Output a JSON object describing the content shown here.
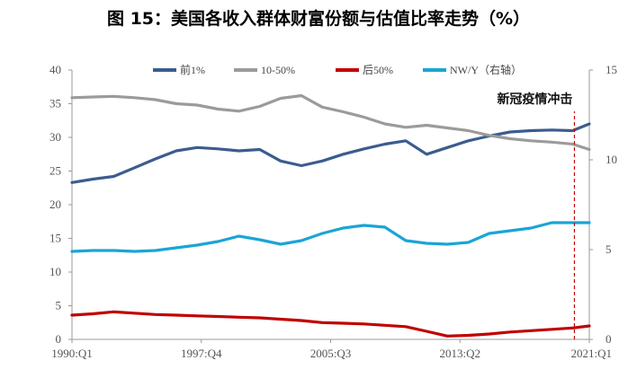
{
  "title": "图 15：美国各收入群体财富份额与估值比率走势（%）",
  "chart_data": {
    "type": "line",
    "y_left": {
      "min": 0,
      "max": 40,
      "ticks": [
        0,
        5,
        10,
        15,
        20,
        25,
        30,
        35,
        40
      ]
    },
    "y_right": {
      "min": 0,
      "max": 15,
      "ticks": [
        0,
        5,
        10,
        15
      ]
    },
    "x_ticks": [
      {
        "label": "1990:Q1",
        "q": 0
      },
      {
        "label": "1997:Q4",
        "q": 31
      },
      {
        "label": "2005:Q3",
        "q": 62
      },
      {
        "label": "2013:Q2",
        "q": 93
      },
      {
        "label": "2021:Q1",
        "q": 124
      }
    ],
    "x_points": [
      0,
      5,
      10,
      15,
      20,
      25,
      30,
      35,
      40,
      45,
      50,
      55,
      60,
      65,
      70,
      75,
      80,
      85,
      90,
      95,
      100,
      105,
      110,
      115,
      120,
      124
    ],
    "series": [
      {
        "name": "前1%",
        "color": "#3b5c8f",
        "axis": "left",
        "values": [
          23.3,
          23.8,
          24.2,
          25.5,
          26.8,
          28.0,
          28.5,
          28.3,
          28.0,
          28.2,
          26.5,
          25.8,
          26.5,
          27.5,
          28.3,
          29.0,
          29.5,
          27.5,
          28.5,
          29.5,
          30.2,
          30.8,
          31.0,
          31.1,
          31.0,
          32.0
        ]
      },
      {
        "name": "10-50%",
        "color": "#9b9b9b",
        "axis": "left",
        "values": [
          35.9,
          36.0,
          36.1,
          35.9,
          35.6,
          35.0,
          34.8,
          34.2,
          33.9,
          34.6,
          35.8,
          36.2,
          34.5,
          33.8,
          33.0,
          32.0,
          31.5,
          31.8,
          31.4,
          31.0,
          30.3,
          29.8,
          29.5,
          29.3,
          29.0,
          28.2
        ]
      },
      {
        "name": "后50%",
        "color": "#c00000",
        "axis": "left",
        "values": [
          3.6,
          3.8,
          4.1,
          3.9,
          3.7,
          3.6,
          3.5,
          3.4,
          3.3,
          3.2,
          3.0,
          2.8,
          2.5,
          2.4,
          2.3,
          2.1,
          1.9,
          1.2,
          0.5,
          0.6,
          0.8,
          1.1,
          1.3,
          1.5,
          1.7,
          2.0
        ]
      },
      {
        "name": "NW/Y（右轴）",
        "color": "#1aa5d6",
        "axis": "right",
        "values": [
          4.9,
          4.95,
          4.95,
          4.9,
          4.95,
          5.1,
          5.25,
          5.45,
          5.75,
          5.55,
          5.3,
          5.5,
          5.9,
          6.2,
          6.35,
          6.25,
          5.5,
          5.35,
          5.3,
          5.4,
          5.9,
          6.05,
          6.2,
          6.5,
          6.5,
          6.5
        ]
      }
    ],
    "annotation": {
      "text": "新冠疫情冲击",
      "q": 120
    },
    "legend_position": "top-center"
  }
}
